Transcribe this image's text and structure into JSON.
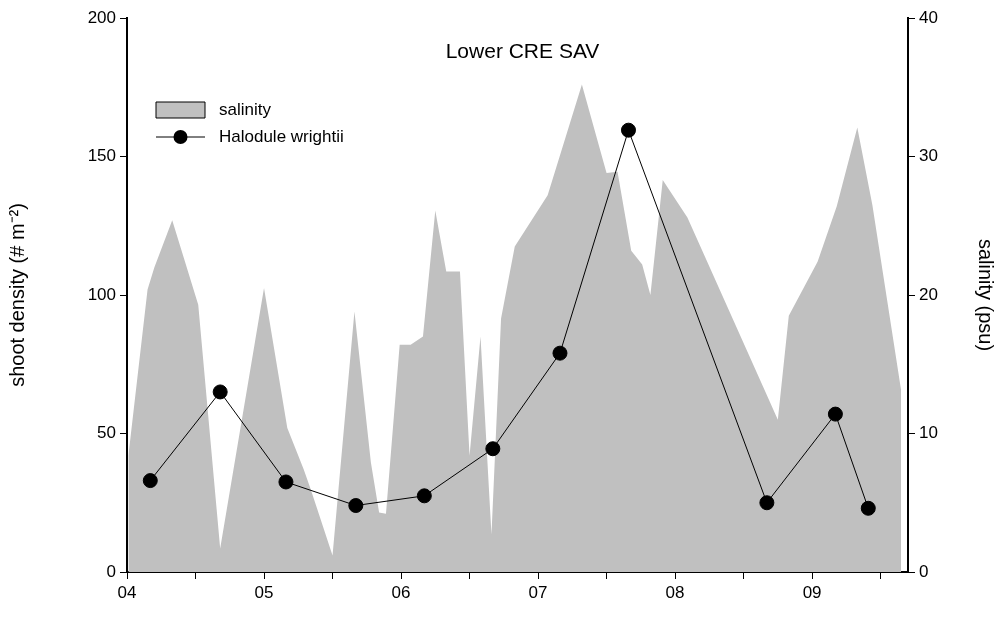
{
  "chart_data": {
    "type": "line",
    "title": "Lower CRE SAV",
    "ylabel": "shoot density (# m⁻²)",
    "y2label": "salinity (psu)",
    "xlim": [
      2004,
      2009.7
    ],
    "xticks": [
      {
        "value": 2004,
        "label": "04"
      },
      {
        "value": 2004.5,
        "label": null
      },
      {
        "value": 2005,
        "label": "05"
      },
      {
        "value": 2005.5,
        "label": null
      },
      {
        "value": 2006,
        "label": "06"
      },
      {
        "value": 2006.5,
        "label": null
      },
      {
        "value": 2007,
        "label": "07"
      },
      {
        "value": 2007.5,
        "label": null
      },
      {
        "value": 2008,
        "label": "08"
      },
      {
        "value": 2008.5,
        "label": null
      },
      {
        "value": 2009,
        "label": "09"
      },
      {
        "value": 2009.5,
        "label": null
      }
    ],
    "ylim": [
      0,
      200
    ],
    "yticks": [
      0,
      50,
      100,
      150,
      200
    ],
    "y2lim": [
      0,
      40
    ],
    "y2ticks": [
      0,
      10,
      20,
      30,
      40
    ],
    "grid": false,
    "legend": "top left",
    "series": [
      {
        "name": "salinity",
        "type": "area",
        "axis": "y2",
        "color": "#c0c0c0",
        "marker": "none",
        "x": [
          2004.01,
          2004.15,
          2004.2,
          2004.33,
          2004.52,
          2004.68,
          2005,
          2005.17,
          2005.29,
          2005.34,
          2005.5,
          2005.66,
          2005.78,
          2005.84,
          2005.89,
          2005.99,
          2006.07,
          2006.16,
          2006.25,
          2006.33,
          2006.43,
          2006.5,
          2006.58,
          2006.66,
          2006.73,
          2006.83,
          2007.07,
          2007.32,
          2007.5,
          2007.58,
          2007.68,
          2007.76,
          2007.82,
          2007.91,
          2008.09,
          2008.75,
          2008.83,
          2009.04,
          2009.18,
          2009.33,
          2009.44,
          2009.65
        ],
        "values": [
          8.4,
          20.4,
          22,
          25.4,
          19.3,
          1.7,
          20.5,
          10.4,
          7.4,
          6,
          1.2,
          18.8,
          7.9,
          4.3,
          4.2,
          16.4,
          16.4,
          17,
          26.1,
          21.7,
          21.7,
          8.4,
          17,
          2.7,
          18.3,
          23.5,
          27.2,
          35.2,
          28.8,
          28.9,
          23.2,
          22.2,
          20,
          28.3,
          25.6,
          11,
          18.5,
          22.4,
          26.4,
          32.1,
          26.5,
          13.1
        ]
      },
      {
        "name": "Halodule wrightii",
        "type": "line",
        "color": "#000000",
        "marker": "circle",
        "line_style": "solid",
        "x": [
          2004.17,
          2004.68,
          2005.16,
          2005.67,
          2006.17,
          2006.67,
          2007.16,
          2007.66,
          2008.67,
          2009.17,
          2009.41
        ],
        "values": [
          33,
          65,
          32.5,
          24,
          27.5,
          44.5,
          79,
          159.5,
          25,
          57,
          23
        ]
      }
    ]
  }
}
